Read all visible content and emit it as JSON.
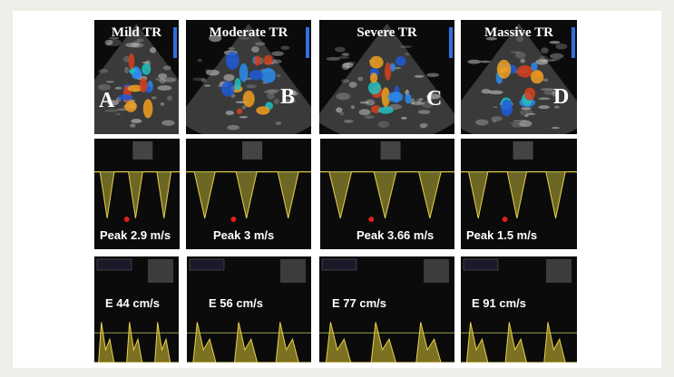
{
  "panels": {
    "row1": [
      {
        "title": "Mild TR",
        "letter": "A"
      },
      {
        "title": "Moderate TR",
        "letter": "B"
      },
      {
        "title": "Severe TR",
        "letter": "C"
      },
      {
        "title": "Massive TR",
        "letter": "D"
      }
    ],
    "row2": [
      "Peak 2.9 m/s",
      "Peak 3 m/s",
      "Peak 3.66 m/s",
      "Peak 1.5 m/s"
    ],
    "row3": [
      "E 44 cm/s",
      "E 56 cm/s",
      "E 77 cm/s",
      "E 91 cm/s"
    ]
  }
}
